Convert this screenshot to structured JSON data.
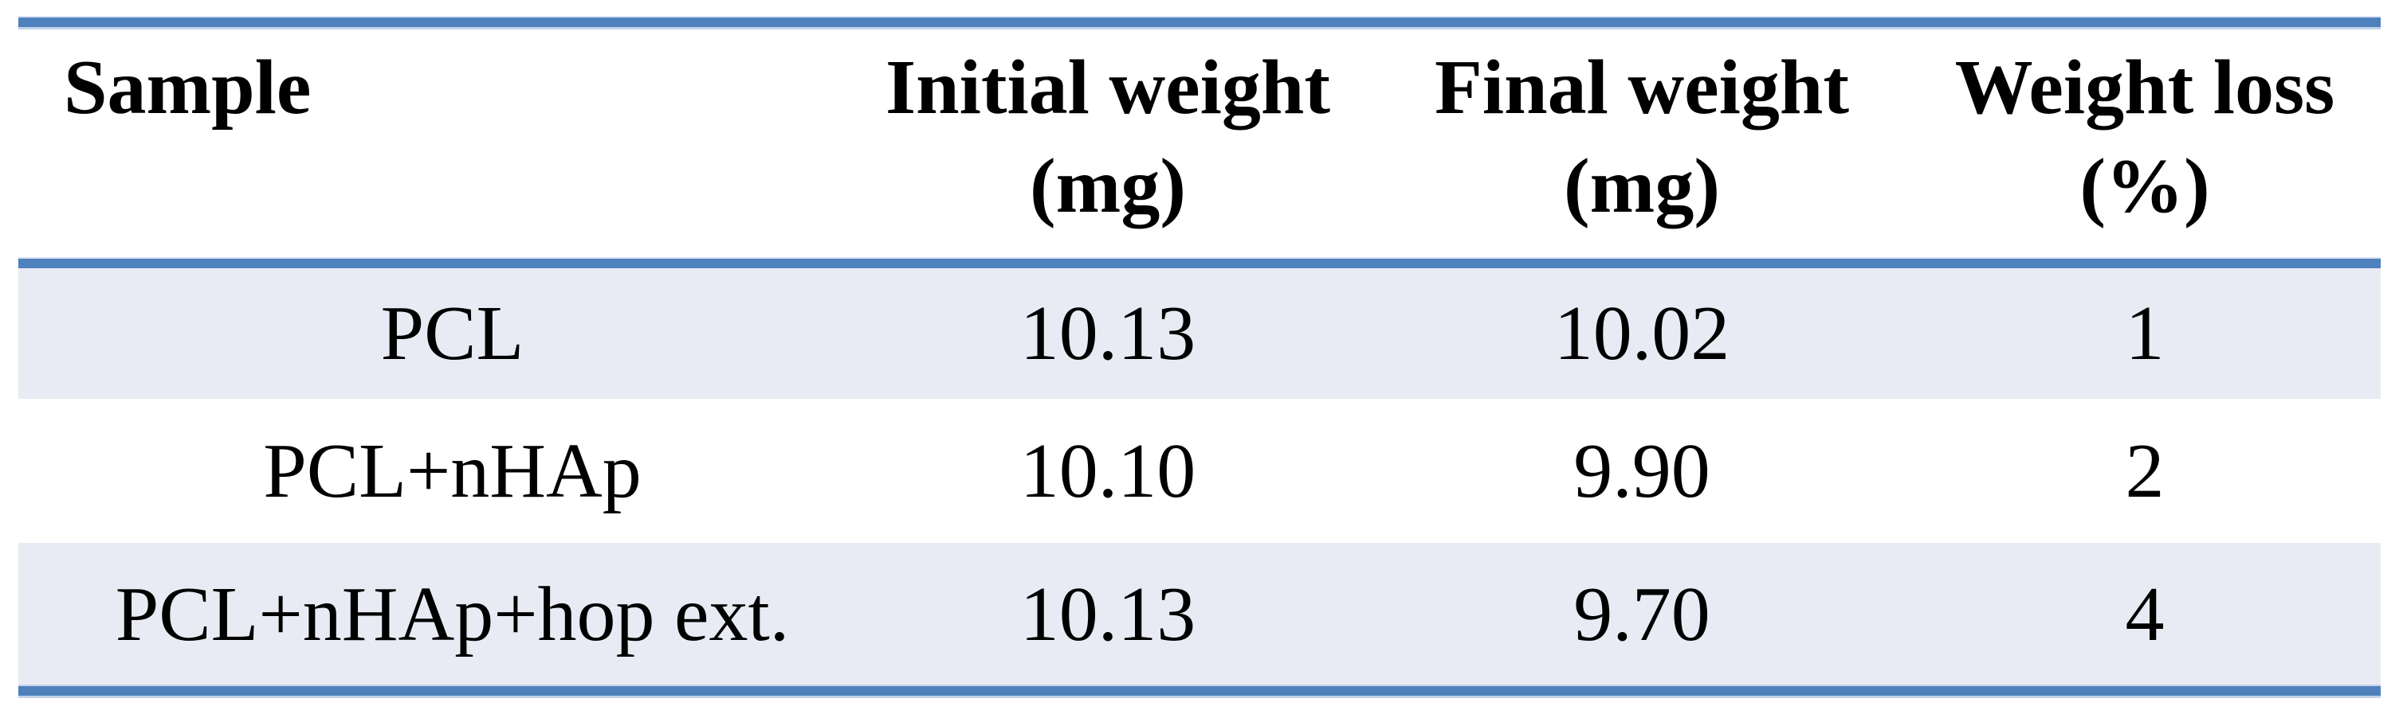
{
  "theme": {
    "accent_blue": "#4f81bd",
    "row_shade": "#e9ebf4",
    "text_color": "#000000",
    "background": "#ffffff"
  },
  "table": {
    "columns": [
      {
        "label": "Sample",
        "unit": ""
      },
      {
        "label": "Initial weight",
        "unit": "(mg)"
      },
      {
        "label": "Final weight",
        "unit": "(mg)"
      },
      {
        "label": "Weight loss",
        "unit": "(%)"
      }
    ],
    "rows": [
      {
        "cells": [
          "PCL",
          "10.13",
          "10.02",
          "1"
        ]
      },
      {
        "cells": [
          "PCL+nHAp",
          "10.10",
          "9.90",
          "2"
        ]
      },
      {
        "cells": [
          "PCL+nHAp+hop ext.",
          "10.13",
          "9.70",
          "4"
        ]
      }
    ]
  },
  "chart_data": {
    "type": "table",
    "columns": [
      "Sample",
      "Initial weight (mg)",
      "Final weight (mg)",
      "Weight loss (%)"
    ],
    "rows": [
      [
        "PCL",
        10.13,
        10.02,
        1
      ],
      [
        "PCL+nHAp",
        10.1,
        9.9,
        2
      ],
      [
        "PCL+nHAp+hop ext.",
        10.13,
        9.7,
        4
      ]
    ]
  }
}
